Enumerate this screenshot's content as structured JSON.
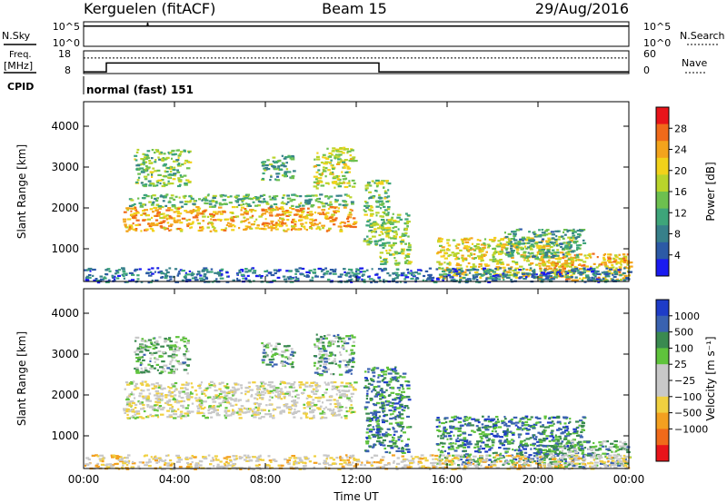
{
  "header": {
    "station": "Kerguelen (fitACF)",
    "beam": "Beam 15",
    "date": "29/Aug/2016"
  },
  "noise_panel": {
    "left_label": "N.Sky",
    "right_label": "N.Search",
    "left_ticks": [
      "10^5",
      "10^0"
    ],
    "right_ticks": [
      "10^5",
      "10^0"
    ]
  },
  "freq_panel": {
    "left_label_line1": "Freq.",
    "left_label_line2": "[MHz]",
    "right_label": "Nave",
    "left_ticks": [
      "18",
      "8"
    ],
    "right_ticks": [
      "60",
      "0"
    ]
  },
  "cpid": {
    "label": "CPID",
    "value": "normal (fast) 151"
  },
  "chart_data": [
    {
      "type": "line",
      "panel": "noise",
      "series": [
        {
          "name": "N.Sky",
          "x_hours": [
            0,
            2.8,
            2.82,
            2.84,
            24
          ],
          "values": [
            0.85,
            0.85,
            1.0,
            0.85,
            0.85
          ]
        }
      ]
    },
    {
      "type": "line",
      "panel": "frequency",
      "series": [
        {
          "name": "Freq",
          "x_hours": [
            0,
            1.0,
            1.0,
            13.0,
            13.0,
            24
          ],
          "values": [
            8.4,
            8.4,
            12.6,
            12.6,
            8.4,
            8.4
          ]
        },
        {
          "name": "Nave",
          "x_hours": [
            0,
            24
          ],
          "values": [
            42,
            42
          ]
        }
      ]
    },
    {
      "type": "heatmap",
      "panel": "power",
      "ylabel": "Slant Range [km]",
      "yticks": [
        1000,
        2000,
        3000,
        4000
      ],
      "ylim": [
        200,
        4600
      ],
      "xlim_hours": [
        0,
        24
      ],
      "colorbar_label": "Power [dB]",
      "colorbar_ticks": [
        4,
        8,
        12,
        16,
        20,
        24,
        28
      ],
      "colorbar_range": [
        0,
        32
      ],
      "colors": [
        "#1a1af0",
        "#2c5aa6",
        "#37808a",
        "#3ea57a",
        "#6dc04f",
        "#b9d42b",
        "#f2d21a",
        "#f3a41c",
        "#f06a1a",
        "#e8141a"
      ],
      "regions": [
        {
          "t0": 1.7,
          "t1": 11.9,
          "r0": 1450,
          "r1": 2050,
          "level": 0.72
        },
        {
          "t0": 1.9,
          "t1": 11.8,
          "r0": 2050,
          "r1": 2350,
          "level": 0.4
        },
        {
          "t0": 2.2,
          "t1": 4.6,
          "r0": 2550,
          "r1": 3450,
          "level": 0.45
        },
        {
          "t0": 10.1,
          "t1": 11.9,
          "r0": 2500,
          "r1": 3500,
          "level": 0.55
        },
        {
          "t0": 7.8,
          "t1": 9.2,
          "r0": 2700,
          "r1": 3300,
          "level": 0.35
        },
        {
          "t0": 12.3,
          "t1": 13.4,
          "r0": 1100,
          "r1": 2700,
          "level": 0.45
        },
        {
          "t0": 13.0,
          "t1": 14.3,
          "r0": 600,
          "r1": 1900,
          "level": 0.5
        },
        {
          "t0": 15.5,
          "t1": 21.5,
          "r0": 300,
          "r1": 1300,
          "level": 0.62
        },
        {
          "t0": 20.0,
          "t1": 24.0,
          "r0": 250,
          "r1": 900,
          "level": 0.7
        },
        {
          "t0": 18.5,
          "t1": 22.0,
          "r0": 800,
          "r1": 1500,
          "level": 0.35
        },
        {
          "t0": 0.0,
          "t1": 24.0,
          "r0": 200,
          "r1": 550,
          "level": 0.22
        }
      ]
    },
    {
      "type": "heatmap",
      "panel": "velocity",
      "ylabel": "Slant Range [km]",
      "yticks": [
        1000,
        2000,
        3000,
        4000
      ],
      "ylim": [
        200,
        4600
      ],
      "xlim_hours": [
        0,
        24
      ],
      "xlabel": "Time UT",
      "xticks": [
        "00:00",
        "04:00",
        "08:00",
        "12:00",
        "16:00",
        "20:00",
        "00:00"
      ],
      "colorbar_label": "Velocity [m s⁻¹]",
      "colorbar_ticks": [
        "1000",
        "500",
        "100",
        "25",
        "−25",
        "−100",
        "−500",
        "−1000"
      ],
      "colors": [
        "#1e3cc8",
        "#3a62b0",
        "#3a8a50",
        "#5fc33c",
        "#c8c8c8",
        "#c8c8c8",
        "#f0d040",
        "#f3a020",
        "#f06a1a",
        "#e8141a"
      ],
      "regions": [
        {
          "t0": 1.7,
          "t1": 11.9,
          "r0": 1450,
          "r1": 2350,
          "level": 0.52
        },
        {
          "t0": 2.2,
          "t1": 4.6,
          "r0": 2550,
          "r1": 3450,
          "level": 0.35
        },
        {
          "t0": 10.1,
          "t1": 11.9,
          "r0": 2500,
          "r1": 3500,
          "level": 0.3
        },
        {
          "t0": 7.8,
          "t1": 9.2,
          "r0": 2700,
          "r1": 3300,
          "level": 0.3
        },
        {
          "t0": 12.3,
          "t1": 14.3,
          "r0": 600,
          "r1": 2700,
          "level": 0.22
        },
        {
          "t0": 15.5,
          "t1": 22.0,
          "r0": 300,
          "r1": 1500,
          "level": 0.22
        },
        {
          "t0": 20.0,
          "t1": 24.0,
          "r0": 250,
          "r1": 900,
          "level": 0.32
        },
        {
          "t0": 0.0,
          "t1": 24.0,
          "r0": 200,
          "r1": 550,
          "level": 0.6
        }
      ]
    }
  ]
}
